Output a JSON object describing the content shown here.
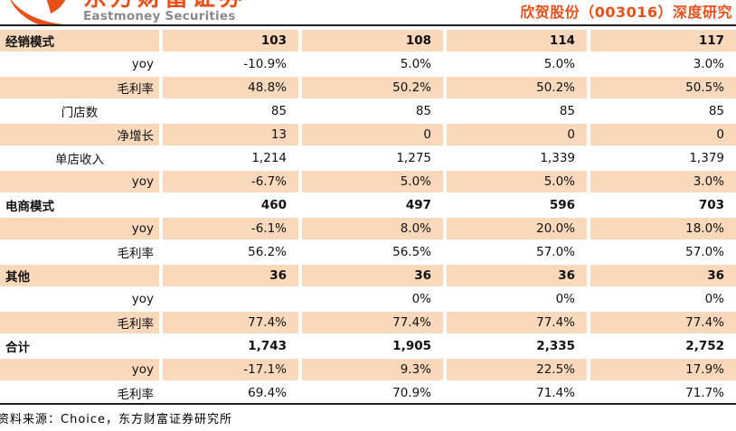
{
  "header": {
    "logo": {
      "brand_cn": "东方财富证券",
      "brand_en": "Eastmoney Securities"
    },
    "title": "欣贺股份（003016）深度研究"
  },
  "table": {
    "rows": [
      {
        "label": "经销模式",
        "style": "section",
        "values": [
          "103",
          "108",
          "114",
          "117"
        ]
      },
      {
        "label": "yoy",
        "style": "right",
        "values": [
          "-10.9%",
          "5.0%",
          "5.0%",
          "3.0%"
        ]
      },
      {
        "label": "毛利率",
        "style": "right",
        "values": [
          "48.8%",
          "50.2%",
          "50.2%",
          "50.5%"
        ]
      },
      {
        "label": "门店数",
        "style": "center",
        "values": [
          "85",
          "85",
          "85",
          "85"
        ]
      },
      {
        "label": "净增长",
        "style": "right",
        "values": [
          "13",
          "0",
          "0",
          "0"
        ]
      },
      {
        "label": "单店收入",
        "style": "center",
        "values": [
          "1,214",
          "1,275",
          "1,339",
          "1,379"
        ]
      },
      {
        "label": "yoy",
        "style": "right",
        "values": [
          "-6.7%",
          "5.0%",
          "5.0%",
          "3.0%"
        ]
      },
      {
        "label": "电商模式",
        "style": "section",
        "values": [
          "460",
          "497",
          "596",
          "703"
        ]
      },
      {
        "label": "yoy",
        "style": "right",
        "values": [
          "-6.1%",
          "8.0%",
          "20.0%",
          "18.0%"
        ]
      },
      {
        "label": "毛利率",
        "style": "right",
        "values": [
          "56.2%",
          "56.5%",
          "57.0%",
          "57.0%"
        ]
      },
      {
        "label": "其他",
        "style": "section",
        "values": [
          "36",
          "36",
          "36",
          "36"
        ]
      },
      {
        "label": "yoy",
        "style": "right",
        "values": [
          "",
          "0%",
          "0%",
          "0%"
        ]
      },
      {
        "label": "毛利率",
        "style": "right",
        "values": [
          "77.4%",
          "77.4%",
          "77.4%",
          "77.4%"
        ]
      },
      {
        "label": "合计",
        "style": "section",
        "values": [
          "1,743",
          "1,905",
          "2,335",
          "2,752"
        ]
      },
      {
        "label": "yoy",
        "style": "right",
        "values": [
          "-17.1%",
          "9.3%",
          "22.5%",
          "17.9%"
        ]
      },
      {
        "label": "毛利率",
        "style": "right",
        "values": [
          "69.4%",
          "70.9%",
          "71.4%",
          "71.7%"
        ]
      }
    ]
  },
  "footer": {
    "source": "资料来源：Choice，东方财富证券研究所"
  },
  "colors": {
    "accent_orange": "#E8501A",
    "row_stripe_peach": "#F9D8BC",
    "rule_dark": "#1F1F1F",
    "brand_gray": "#8A8A8A"
  }
}
